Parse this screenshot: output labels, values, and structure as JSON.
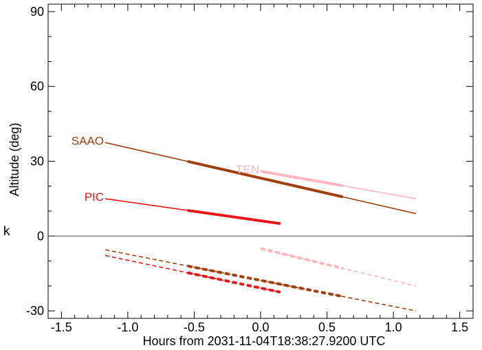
{
  "chart_data": {
    "type": "line",
    "title": "",
    "xlabel": "Hours from 2031-11-04T18:38:27.9200 UTC",
    "ylabel": "Altitude (deg)",
    "xlim": [
      -1.6,
      1.6
    ],
    "ylim": [
      -33,
      93
    ],
    "x_ticks": [
      "-1.5",
      "-1.0",
      "-0.5",
      "0.0",
      "0.5",
      "1.0",
      "1.5"
    ],
    "y_ticks": [
      "-30",
      "0",
      "30",
      "60",
      "90"
    ],
    "side_label": "k",
    "grid": false,
    "horizon_line": 0,
    "series": [
      {
        "name": "SAAO",
        "color": "#A0400E",
        "x": [
          -1.17,
          1.17
        ],
        "y": [
          37.5,
          9
        ],
        "thick_x": [
          -0.55,
          0.62
        ],
        "shadow_y": [
          -5.5,
          -30
        ],
        "shadow_thick_x": [
          -0.55,
          0.62
        ]
      },
      {
        "name": "TEN",
        "color": "#FFB6C1",
        "x": [
          0.0,
          1.17
        ],
        "y": [
          26,
          15
        ],
        "thick_x": [
          0.0,
          0.62
        ],
        "shadow_y": [
          -5,
          -20
        ],
        "shadow_thick_x": [
          0.0,
          0.62
        ]
      },
      {
        "name": "PIC",
        "color": "#E8141A",
        "x": [
          -1.17,
          0.15
        ],
        "y": [
          15,
          5
        ],
        "thick_x": [
          -0.55,
          0.15
        ],
        "shadow_y": [
          -7.8,
          -22.5
        ],
        "shadow_thick_x": [
          -0.55,
          0.15
        ]
      }
    ]
  }
}
